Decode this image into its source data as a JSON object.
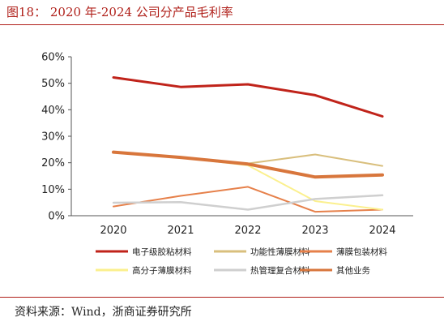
{
  "figure": {
    "title": "图18： 2020 年-2024 公司分产品毛利率",
    "source": "资料来源：Wind，浙商证券研究所"
  },
  "chart_data": {
    "type": "line",
    "x": [
      "2020",
      "2021",
      "2022",
      "2023",
      "2024"
    ],
    "ylim": [
      0,
      60
    ],
    "yticks": [
      "0%",
      "10%",
      "20%",
      "30%",
      "40%",
      "50%",
      "60%"
    ],
    "grid": false,
    "legend_position": "bottom",
    "series": [
      {
        "name": "电子级胶粘材料",
        "values": [
          52.2,
          48.6,
          49.6,
          45.5,
          37.5
        ],
        "color": "#c0231a",
        "width": 3
      },
      {
        "name": "功能性薄膜材料",
        "values": [
          24.2,
          22.0,
          19.7,
          23.1,
          18.8
        ],
        "color": "#d9bf7d",
        "width": 2
      },
      {
        "name": "薄膜包装材料",
        "values": [
          3.5,
          7.5,
          10.9,
          1.5,
          2.3
        ],
        "color": "#e6804a",
        "width": 2
      },
      {
        "name": "高分子薄膜材料",
        "values": [
          24.0,
          22.0,
          19.0,
          5.5,
          2.3
        ],
        "color": "#fbf08e",
        "width": 2
      },
      {
        "name": "热管理复合材料",
        "values": [
          4.9,
          5.1,
          2.3,
          6.3,
          7.7
        ],
        "color": "#cfcfcf",
        "width": 2.5
      },
      {
        "name": "其他业务",
        "values": [
          24.0,
          22.0,
          19.5,
          14.6,
          15.4
        ],
        "color": "#d8763c",
        "width": 4
      }
    ]
  }
}
